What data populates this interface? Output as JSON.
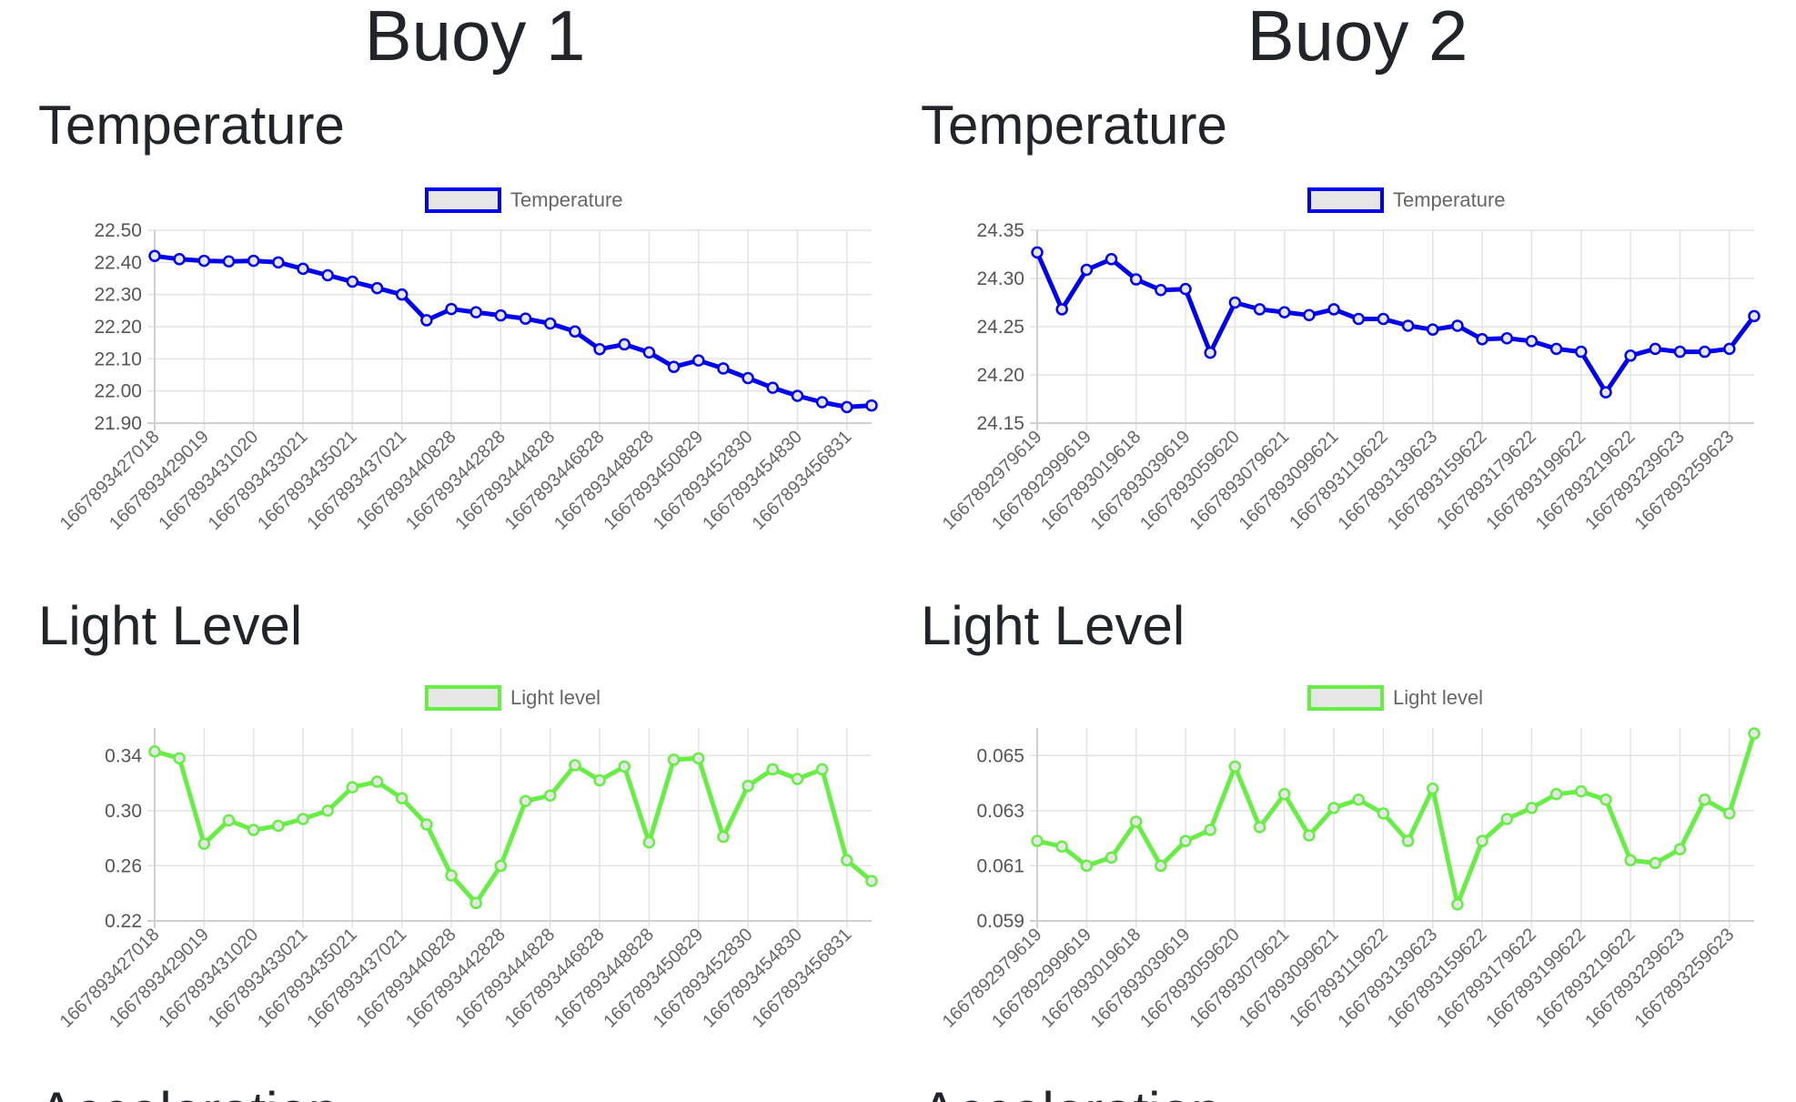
{
  "buoys": [
    {
      "title": "Buoy 1",
      "sections": [
        {
          "heading": "Temperature",
          "chart_data": {
            "type": "line",
            "legend": "Temperature",
            "color": "#0000ee",
            "tick_labels": [
              "1667893427018",
              "1667893429019",
              "1667893431020",
              "1667893433021",
              "1667893435021",
              "1667893437021",
              "1667893440828",
              "1667893442828",
              "1667893444828",
              "1667893446828",
              "1667893448828",
              "1667893450829",
              "1667893452830",
              "1667893454830",
              "1667893456831"
            ],
            "ylim": [
              21.9,
              22.5
            ],
            "yticks": [
              "22.50",
              "22.40",
              "22.30",
              "22.20",
              "22.10",
              "22.00",
              "21.90"
            ],
            "values": [
              22.42,
              22.41,
              22.405,
              22.403,
              22.405,
              22.4,
              22.38,
              22.36,
              22.34,
              22.32,
              22.3,
              22.22,
              22.255,
              22.245,
              22.235,
              22.225,
              22.21,
              22.185,
              22.13,
              22.145,
              22.12,
              22.075,
              22.095,
              22.07,
              22.04,
              22.01,
              21.985,
              21.965,
              21.95,
              21.955
            ]
          }
        },
        {
          "heading": "Light Level",
          "chart_data": {
            "type": "line",
            "legend": "Light level",
            "color": "#66ee44",
            "tick_labels": [
              "1667893427018",
              "1667893429019",
              "1667893431020",
              "1667893433021",
              "1667893435021",
              "1667893437021",
              "1667893440828",
              "1667893442828",
              "1667893444828",
              "1667893446828",
              "1667893448828",
              "1667893450829",
              "1667893452830",
              "1667893454830",
              "1667893456831"
            ],
            "ylim": [
              0.22,
              0.36
            ],
            "yticks": [
              "0.34",
              "0.30",
              "0.26",
              "0.22"
            ],
            "ytick_values": [
              0.34,
              0.3,
              0.26,
              0.22
            ],
            "values": [
              0.343,
              0.338,
              0.276,
              0.293,
              0.286,
              0.289,
              0.294,
              0.3,
              0.317,
              0.321,
              0.309,
              0.29,
              0.253,
              0.233,
              0.26,
              0.307,
              0.311,
              0.333,
              0.322,
              0.332,
              0.277,
              0.337,
              0.338,
              0.281,
              0.318,
              0.33,
              0.323,
              0.33,
              0.264,
              0.249
            ]
          }
        }
      ],
      "next_heading": "Acceleration"
    },
    {
      "title": "Buoy 2",
      "sections": [
        {
          "heading": "Temperature",
          "chart_data": {
            "type": "line",
            "legend": "Temperature",
            "color": "#0000ee",
            "tick_labels": [
              "1667892979619",
              "1667892999619",
              "1667893019618",
              "1667893039619",
              "1667893059620",
              "1667893079621",
              "1667893099621",
              "1667893119622",
              "1667893139623",
              "1667893159622",
              "1667893179622",
              "1667893199622",
              "1667893219622",
              "1667893239623",
              "1667893259623"
            ],
            "ylim": [
              24.15,
              24.35
            ],
            "yticks": [
              "24.35",
              "24.30",
              "24.25",
              "24.20",
              "24.15"
            ],
            "values": [
              24.327,
              24.268,
              24.309,
              24.32,
              24.299,
              24.288,
              24.289,
              24.223,
              24.275,
              24.268,
              24.265,
              24.262,
              24.268,
              24.258,
              24.258,
              24.251,
              24.247,
              24.251,
              24.237,
              24.238,
              24.235,
              24.227,
              24.224,
              24.182,
              24.22,
              24.227,
              24.224,
              24.224,
              24.227,
              24.261
            ]
          }
        },
        {
          "heading": "Light Level",
          "chart_data": {
            "type": "line",
            "legend": "Light level",
            "color": "#66ee44",
            "tick_labels": [
              "1667892979619",
              "1667892999619",
              "1667893019618",
              "1667893039619",
              "1667893059620",
              "1667893079621",
              "1667893099621",
              "1667893119622",
              "1667893139623",
              "1667893159622",
              "1667893179622",
              "1667893199622",
              "1667893219622",
              "1667893239623",
              "1667893259623"
            ],
            "ylim": [
              0.059,
              0.066
            ],
            "yticks": [
              "0.065",
              "0.063",
              "0.061",
              "0.059"
            ],
            "ytick_values": [
              0.065,
              0.063,
              0.061,
              0.059
            ],
            "values": [
              0.0619,
              0.0617,
              0.061,
              0.0613,
              0.0626,
              0.061,
              0.0619,
              0.0623,
              0.0646,
              0.0624,
              0.0636,
              0.0621,
              0.0631,
              0.0634,
              0.0629,
              0.0619,
              0.0638,
              0.0596,
              0.0619,
              0.0627,
              0.0631,
              0.0636,
              0.0637,
              0.0634,
              0.0612,
              0.0611,
              0.0616,
              0.0634,
              0.0629,
              0.0658
            ]
          }
        }
      ],
      "next_heading": "Acceleration"
    }
  ]
}
